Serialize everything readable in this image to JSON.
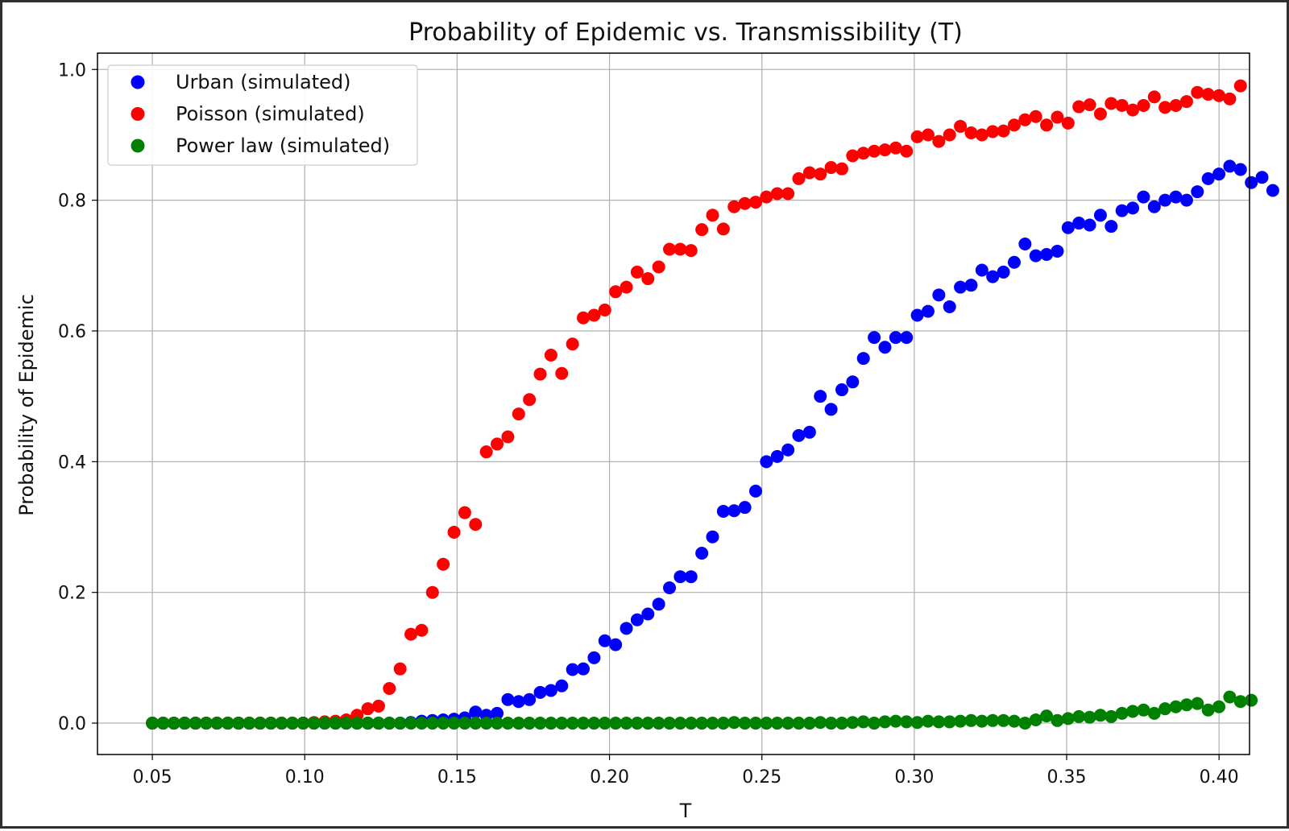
{
  "chart_data": {
    "type": "scatter",
    "title": "Probability of Epidemic vs. Transmissibility (T)",
    "xlabel": "T",
    "ylabel": "Probability of Epidemic",
    "xlim": [
      0.032,
      0.41
    ],
    "ylim": [
      -0.048,
      1.025
    ],
    "xticks": [
      0.05,
      0.1,
      0.15,
      0.2,
      0.25,
      0.3,
      0.35,
      0.4
    ],
    "xtick_labels": [
      "0.05",
      "0.10",
      "0.15",
      "0.20",
      "0.25",
      "0.30",
      "0.35",
      "0.40"
    ],
    "yticks": [
      0.0,
      0.2,
      0.4,
      0.6,
      0.8,
      1.0
    ],
    "ytick_labels": [
      "0.0",
      "0.2",
      "0.4",
      "0.6",
      "0.8",
      "1.0"
    ],
    "grid": true,
    "legend_position": "top-left",
    "x_start": 0.05,
    "x_step": 0.003535,
    "series": [
      {
        "name": "Urban (simulated)",
        "color": "#0000ff",
        "values": [
          0,
          0,
          0,
          0,
          0,
          0,
          0,
          0,
          0,
          0,
          0,
          0,
          0,
          0,
          0,
          0,
          0,
          0,
          0,
          0,
          0,
          0,
          0,
          0,
          0.001,
          0.003,
          0.004,
          0.005,
          0.006,
          0.008,
          0.017,
          0.012,
          0.015,
          0.036,
          0.033,
          0.036,
          0.047,
          0.05,
          0.057,
          0.082,
          0.083,
          0.1,
          0.126,
          0.12,
          0.145,
          0.158,
          0.167,
          0.182,
          0.207,
          0.224,
          0.224,
          0.26,
          0.285,
          0.324,
          0.325,
          0.33,
          0.355,
          0.4,
          0.408,
          0.418,
          0.44,
          0.445,
          0.5,
          0.48,
          0.51,
          0.522,
          0.558,
          0.59,
          0.575,
          0.59,
          0.59,
          0.624,
          0.63,
          0.655,
          0.637,
          0.667,
          0.67,
          0.693,
          0.683,
          0.69,
          0.705,
          0.733,
          0.715,
          0.717,
          0.722,
          0.758,
          0.765,
          0.762,
          0.777,
          0.76,
          0.784,
          0.788,
          0.805,
          0.79,
          0.8,
          0.805,
          0.8,
          0.813,
          0.833,
          0.84,
          0.852,
          0.847,
          0.827,
          0.835,
          0.815
        ]
      },
      {
        "name": "Poisson (simulated)",
        "color": "#ff0000",
        "values": [
          0,
          0,
          0,
          0,
          0,
          0,
          0,
          0,
          0,
          0,
          0,
          0,
          0,
          0,
          0,
          0.001,
          0.002,
          0.003,
          0.005,
          0.012,
          0.022,
          0.026,
          0.053,
          0.083,
          0.136,
          0.142,
          0.2,
          0.243,
          0.292,
          0.322,
          0.304,
          0.415,
          0.427,
          0.438,
          0.473,
          0.495,
          0.534,
          0.563,
          0.535,
          0.58,
          0.62,
          0.624,
          0.632,
          0.66,
          0.667,
          0.69,
          0.68,
          0.698,
          0.725,
          0.725,
          0.723,
          0.755,
          0.777,
          0.756,
          0.79,
          0.795,
          0.797,
          0.805,
          0.81,
          0.81,
          0.833,
          0.842,
          0.84,
          0.85,
          0.848,
          0.868,
          0.872,
          0.875,
          0.877,
          0.88,
          0.875,
          0.897,
          0.9,
          0.89,
          0.9,
          0.913,
          0.903,
          0.9,
          0.905,
          0.906,
          0.915,
          0.923,
          0.928,
          0.915,
          0.927,
          0.918,
          0.943,
          0.946,
          0.932,
          0.948,
          0.945,
          0.938,
          0.945,
          0.958,
          0.942,
          0.945,
          0.951,
          0.965,
          0.962,
          0.96,
          0.955,
          0.975
        ]
      },
      {
        "name": "Power law (simulated)",
        "color": "#008000",
        "values": [
          0,
          0,
          0,
          0,
          0,
          0,
          0,
          0,
          0,
          0,
          0,
          0,
          0,
          0,
          0,
          0,
          0,
          0,
          0,
          0,
          0,
          0,
          0,
          0,
          0,
          0,
          0,
          0,
          0,
          0,
          0,
          0,
          0,
          0,
          0,
          0,
          0,
          0,
          0,
          0,
          0,
          0,
          0,
          0,
          0,
          0,
          0,
          0,
          0,
          0,
          0,
          0,
          0,
          0,
          0.001,
          0,
          0,
          0,
          0,
          0,
          0,
          0,
          0.001,
          0,
          0,
          0.001,
          0.002,
          0,
          0.002,
          0.003,
          0.002,
          0.001,
          0.003,
          0.002,
          0.002,
          0.003,
          0.004,
          0.003,
          0.004,
          0.004,
          0.003,
          0,
          0.005,
          0.011,
          0.004,
          0.007,
          0.01,
          0.009,
          0.012,
          0.01,
          0.015,
          0.018,
          0.02,
          0.015,
          0.022,
          0.025,
          0.028,
          0.03,
          0.02,
          0.025,
          0.04,
          0.033,
          0.035
        ]
      }
    ]
  }
}
